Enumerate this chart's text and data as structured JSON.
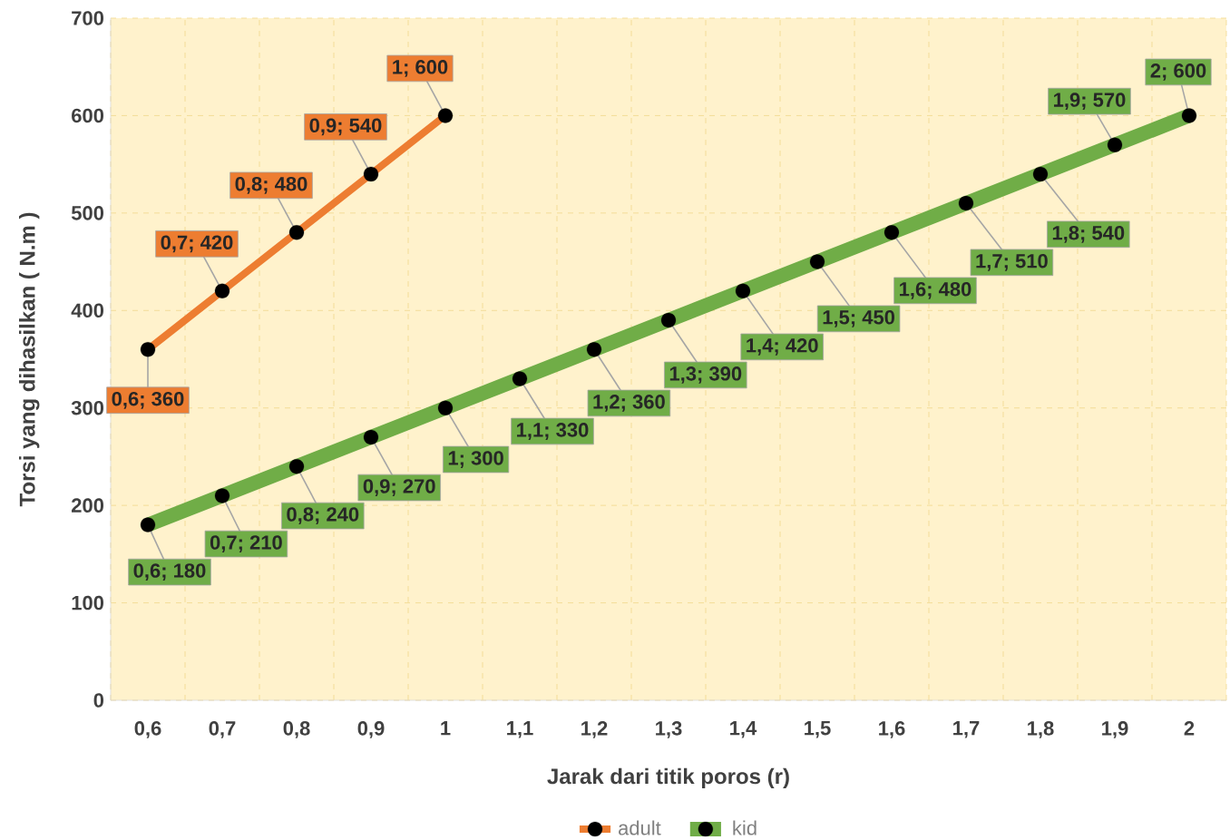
{
  "chart_data": {
    "type": "line",
    "xlabel": "Jarak dari titik poros (r)",
    "ylabel": "Torsi yang dihasilkan  (  N.m )",
    "categories": [
      "0,6",
      "0,7",
      "0,8",
      "0,9",
      "1",
      "1,1",
      "1,2",
      "1,3",
      "1,4",
      "1,5",
      "1,6",
      "1,7",
      "1,8",
      "1,9",
      "2"
    ],
    "series": [
      {
        "name": "adult",
        "color": "#ed7d31",
        "values": [
          360,
          420,
          480,
          540,
          600,
          null,
          null,
          null,
          null,
          null,
          null,
          null,
          null,
          null,
          null
        ],
        "value_labels": [
          "0,6; 360",
          "0,7; 420",
          "0,8; 480",
          "0,9; 540",
          "1; 600",
          null,
          null,
          null,
          null,
          null,
          null,
          null,
          null,
          null,
          null
        ]
      },
      {
        "name": "kid",
        "color": "#70ad47",
        "values": [
          180,
          210,
          240,
          270,
          300,
          330,
          360,
          390,
          420,
          450,
          480,
          510,
          540,
          570,
          600
        ],
        "value_labels": [
          "0,6; 180",
          "0,7; 210",
          "0,8; 240",
          "0,9; 270",
          "1; 300",
          "1,1; 330",
          "1,2; 360",
          "1,3; 390",
          "1,4; 420",
          "1,5; 450",
          "1,6; 480",
          "1,7; 510",
          "1,8; 540",
          "1,9; 570",
          "2; 600"
        ]
      }
    ],
    "ylim": [
      0,
      700
    ],
    "yticks": [
      0,
      100,
      200,
      300,
      400,
      500,
      600,
      700
    ],
    "grid": true,
    "legend": "bottom",
    "marker": "circle"
  }
}
